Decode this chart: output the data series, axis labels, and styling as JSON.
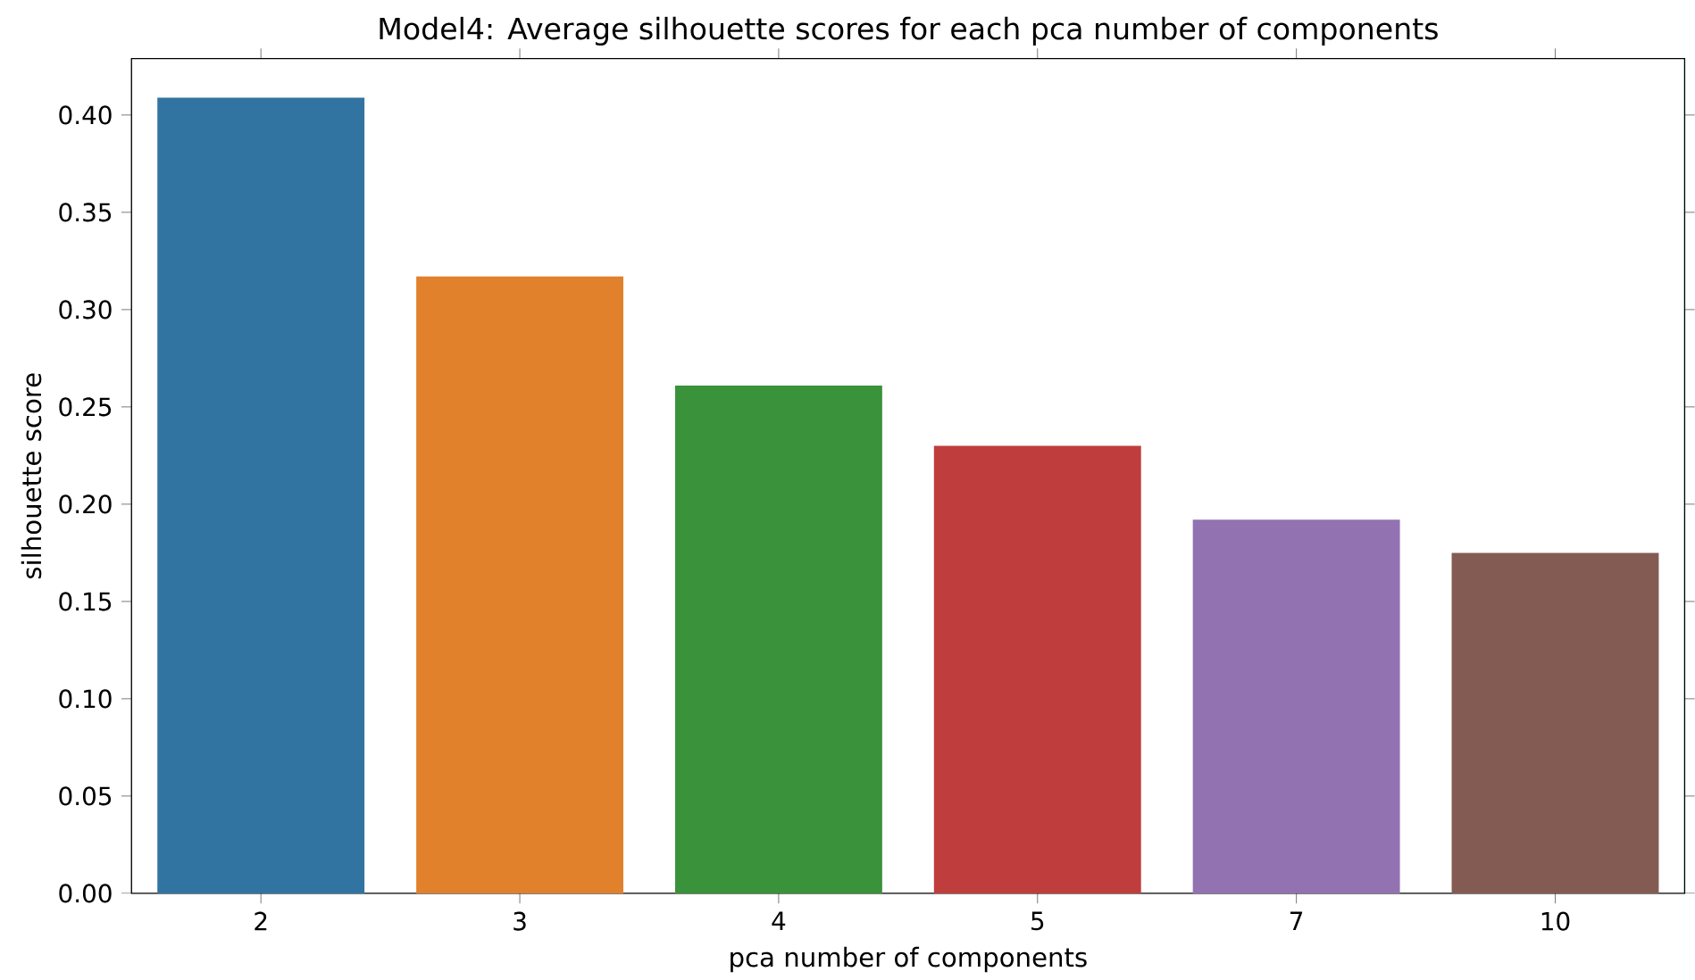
{
  "chart_data": {
    "type": "bar",
    "title": "Model4: Average silhouette scores for each pca number of components",
    "xlabel": "pca number of components",
    "ylabel": "silhouette score",
    "categories": [
      "2",
      "3",
      "4",
      "5",
      "7",
      "10"
    ],
    "values": [
      0.409,
      0.317,
      0.261,
      0.23,
      0.192,
      0.175
    ],
    "colors": [
      "#3274a1",
      "#e1812c",
      "#3a923a",
      "#c03d3e",
      "#9372b2",
      "#845b53"
    ],
    "ylim": [
      0,
      0.429
    ],
    "yticks": [
      {
        "value": 0,
        "label": "0.00"
      },
      {
        "value": 0.05,
        "label": "0.05"
      },
      {
        "value": 0.1,
        "label": "0.10"
      },
      {
        "value": 0.15,
        "label": "0.15"
      },
      {
        "value": 0.2,
        "label": "0.20"
      },
      {
        "value": 0.25,
        "label": "0.25"
      },
      {
        "value": 0.3,
        "label": "0.30"
      },
      {
        "value": 0.35,
        "label": "0.35"
      },
      {
        "value": 0.4,
        "label": "0.40"
      }
    ]
  }
}
